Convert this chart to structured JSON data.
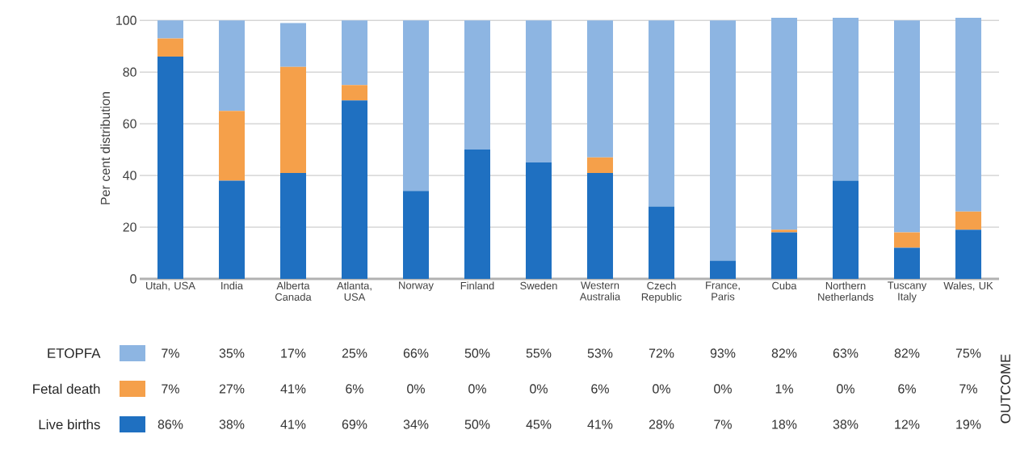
{
  "chart_data": {
    "type": "bar",
    "stacked": true,
    "ylabel": "Per cent distribution",
    "ylim": [
      0,
      101
    ],
    "yticks": [
      0,
      20,
      40,
      60,
      80,
      100
    ],
    "grid": "y",
    "legend": "bottom left",
    "categories": [
      "Utah, USA",
      "India",
      "Alberta Canada",
      "Atlanta, USA",
      "Norway",
      "Finland",
      "Sweden",
      "Western Australia",
      "Czech Republic",
      "France, Paris",
      "Cuba",
      "Northern Netherlands",
      "Tuscany Italy",
      "Wales, UK"
    ],
    "series": [
      {
        "name": "Live births",
        "color": "#1f70c1",
        "values": [
          86,
          38,
          41,
          69,
          34,
          50,
          45,
          41,
          28,
          7,
          18,
          38,
          12,
          19
        ],
        "value_labels": [
          "86%",
          "38%",
          "41%",
          "69%",
          "34%",
          "50%",
          "45%",
          "41%",
          "28%",
          "7%",
          "18%",
          "38%",
          "12%",
          "19%"
        ]
      },
      {
        "name": "Fetal death",
        "color": "#f5a04a",
        "values": [
          7,
          27,
          41,
          6,
          0,
          0,
          0,
          6,
          0,
          0,
          1,
          0,
          6,
          7
        ],
        "value_labels": [
          "7%",
          "27%",
          "41%",
          "6%",
          "0%",
          "0%",
          "0%",
          "6%",
          "0%",
          "0%",
          "1%",
          "0%",
          "6%",
          "7%"
        ]
      },
      {
        "name": "ETOPFA",
        "color": "#8db5e2",
        "values": [
          7,
          35,
          17,
          25,
          66,
          50,
          55,
          53,
          72,
          93,
          82,
          63,
          82,
          75
        ],
        "value_labels": [
          "7%",
          "35%",
          "17%",
          "25%",
          "66%",
          "50%",
          "55%",
          "53%",
          "72%",
          "93%",
          "82%",
          "63%",
          "82%",
          "75%"
        ]
      }
    ],
    "annotations": [
      "OUTCOME"
    ]
  }
}
